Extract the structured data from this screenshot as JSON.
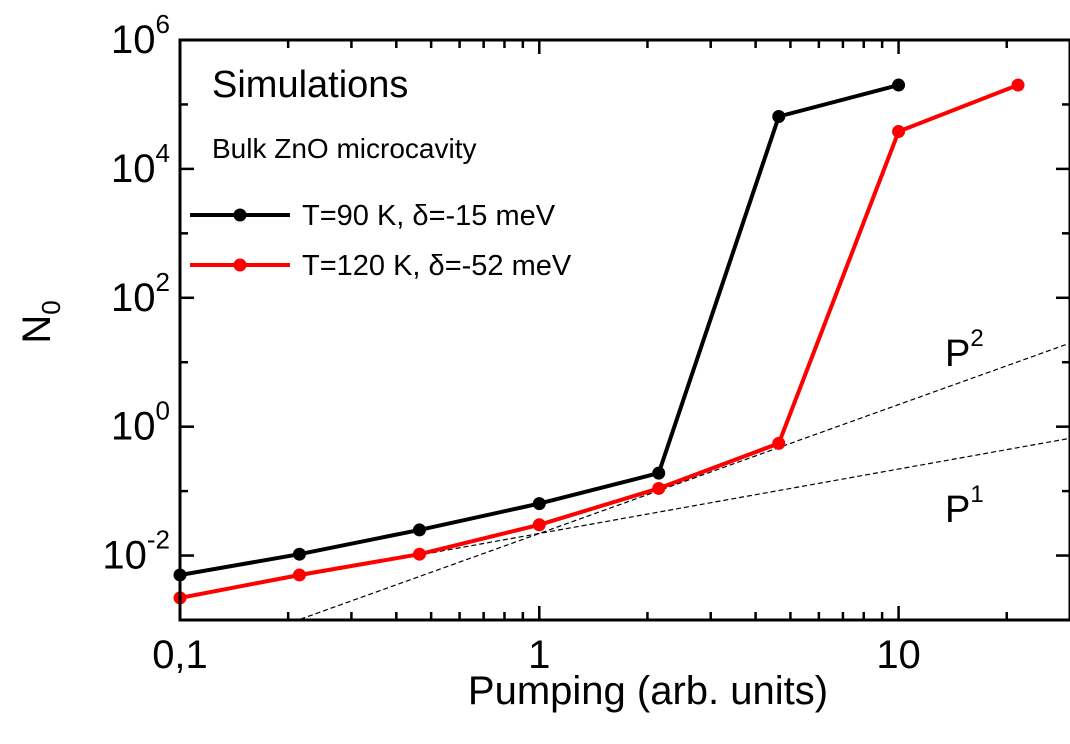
{
  "chart_data": {
    "type": "line",
    "title": "Simulations",
    "subtitle": "Bulk ZnO microcavity",
    "xlabel": "Pumping (arb. units)",
    "ylabel": "N",
    "ylabel_subscript": "0",
    "xscale": "log",
    "yscale": "log",
    "xlim": [
      0.1,
      30
    ],
    "ylim": [
      0.001,
      1000000
    ],
    "x_ticks": [
      {
        "value": 0.1,
        "label": "0,1"
      },
      {
        "value": 1,
        "label": "1"
      },
      {
        "value": 10,
        "label": "10"
      }
    ],
    "y_ticks": [
      {
        "value": 0.01,
        "base": "10",
        "exp": "-2"
      },
      {
        "value": 1,
        "base": "10",
        "exp": "0"
      },
      {
        "value": 100,
        "base": "10",
        "exp": "2"
      },
      {
        "value": 10000,
        "base": "10",
        "exp": "4"
      },
      {
        "value": 1000000,
        "base": "10",
        "exp": "6"
      }
    ],
    "legend_position": "top-left",
    "grid": false,
    "series": [
      {
        "name": "T=90 K, δ=-15 meV",
        "color": "#000000",
        "marker": "circle",
        "x": [
          0.1,
          0.215,
          0.464,
          1,
          2.15,
          4.64,
          10
        ],
        "y": [
          0.005,
          0.0105,
          0.025,
          0.064,
          0.19,
          65000,
          200000
        ]
      },
      {
        "name": "T=120 K, δ=-52 meV",
        "color": "#ff0000",
        "marker": "circle",
        "x": [
          0.1,
          0.215,
          0.464,
          1,
          2.15,
          4.64,
          10,
          21.5
        ],
        "y": [
          0.0022,
          0.005,
          0.0105,
          0.03,
          0.11,
          0.55,
          38000,
          200000
        ]
      }
    ],
    "reference_lines": [
      {
        "label_base": "P",
        "label_exp": "2",
        "exponent": 2,
        "coefficient": 0.022,
        "style": "dashed"
      },
      {
        "label_base": "P",
        "label_exp": "1",
        "exponent": 1,
        "coefficient": 0.022,
        "style": "dashed"
      }
    ]
  }
}
